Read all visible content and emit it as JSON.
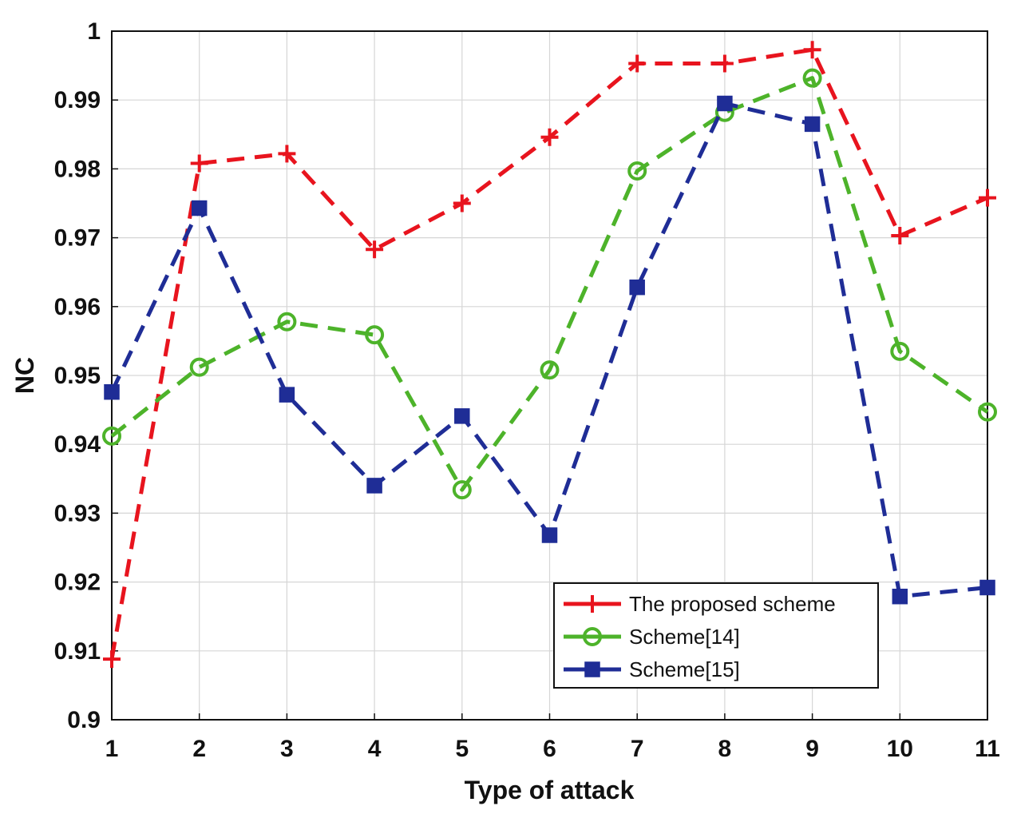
{
  "chart_data": {
    "type": "line",
    "title": "",
    "xlabel": "Type of attack",
    "ylabel": "NC",
    "x": [
      1,
      2,
      3,
      4,
      5,
      6,
      7,
      8,
      9,
      10,
      11
    ],
    "xlim": [
      1,
      11
    ],
    "ylim": [
      0.9,
      1.0
    ],
    "xticks": [
      "1",
      "2",
      "3",
      "4",
      "5",
      "6",
      "7",
      "8",
      "9",
      "10",
      "11"
    ],
    "yticks": [
      "0.9",
      "0.91",
      "0.92",
      "0.93",
      "0.94",
      "0.95",
      "0.96",
      "0.97",
      "0.98",
      "0.99",
      "1"
    ],
    "grid": true,
    "legend_position": "bottom-right",
    "series": [
      {
        "name": "The proposed scheme",
        "color": "#e8141e",
        "marker": "plus",
        "line_style": "dashed",
        "values": [
          0.9088,
          0.9808,
          0.9822,
          0.9683,
          0.975,
          0.9846,
          0.9953,
          0.9953,
          0.9973,
          0.9703,
          0.9758
        ]
      },
      {
        "name": "Scheme[14]",
        "color": "#4db32a",
        "marker": "circle",
        "line_style": "dashed",
        "values": [
          0.9412,
          0.9512,
          0.9578,
          0.9559,
          0.9334,
          0.9508,
          0.9797,
          0.9882,
          0.9932,
          0.9535,
          0.9447
        ]
      },
      {
        "name": "Scheme[15]",
        "color": "#1f2d96",
        "marker": "square",
        "line_style": "dashed",
        "values": [
          0.9476,
          0.9743,
          0.9472,
          0.934,
          0.9441,
          0.9268,
          0.9628,
          0.9895,
          0.9865,
          0.9179,
          0.9192
        ]
      }
    ]
  }
}
